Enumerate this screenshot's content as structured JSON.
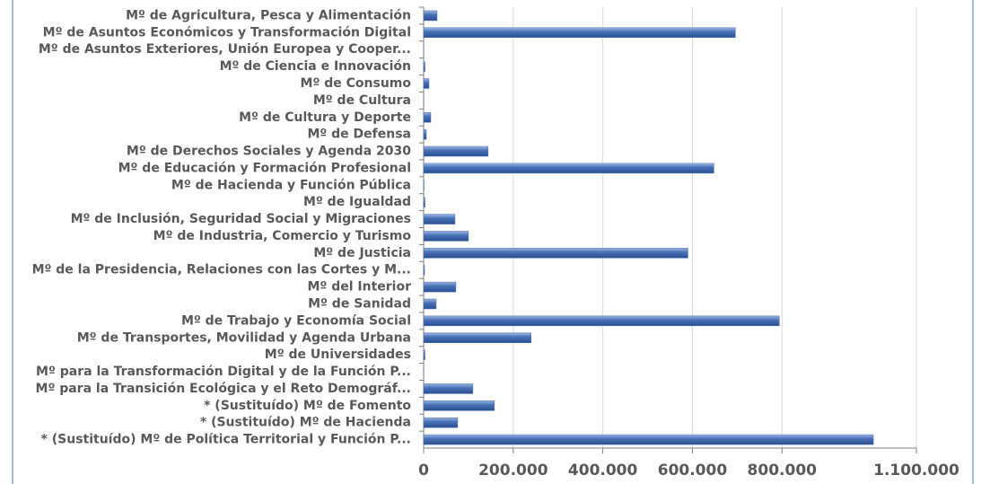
{
  "chart_data": {
    "type": "bar",
    "orientation": "horizontal",
    "categories": [
      "Mº de Agricultura, Pesca y Alimentación",
      "Mº de Asuntos Económicos y Transformación Digital",
      "Mº de Asuntos Exteriores, Unión Europea y Cooper...",
      "Mº de Ciencia e Innovación",
      "Mº de Consumo",
      "Mº de Cultura",
      "Mº de Cultura y Deporte",
      "Mº de Defensa",
      "Mº de Derechos Sociales y Agenda 2030",
      "Mº de Educación y Formación Profesional",
      "Mº de Hacienda y Función Pública",
      "Mº de Igualdad",
      "Mº de Inclusión, Seguridad Social y Migraciones",
      "Mº de Industria, Comercio y Turismo",
      "Mº de Justicia",
      "Mº de la Presidencia, Relaciones con las Cortes y M...",
      "Mº del Interior",
      "Mº de Sanidad",
      "Mº de Trabajo y Economía Social",
      "Mº de Transportes, Movilidad y Agenda Urbana",
      "Mº de Universidades",
      "Mº para la Transformación Digital y de la Función P...",
      "Mº para la Transición Ecológica y el Reto Demográf...",
      "* (Sustituído) Mº de Fomento",
      "* (Sustituído) Mº de Hacienda",
      "* (Sustituído) Mº de Política Territorial y Función P..."
    ],
    "values": [
      30000,
      696000,
      500,
      3000,
      12000,
      500,
      16000,
      6000,
      144000,
      648000,
      1000,
      3000,
      70000,
      100000,
      590000,
      2000,
      72000,
      28000,
      794000,
      240000,
      3000,
      500,
      110000,
      158000,
      76000,
      1004000
    ],
    "color": "#4a72b8",
    "xlim": [
      0,
      1100000
    ],
    "xticks": [
      0,
      {
        "value": 200000,
        "label": "200.000"
      },
      {
        "value": 400000,
        "label": "400.000"
      },
      {
        "value": 600000,
        "label": "600.000"
      },
      {
        "value": 800000,
        "label": "800.000"
      },
      {
        "value": 1100000,
        "label": "1.100.000"
      }
    ],
    "grid": true
  }
}
